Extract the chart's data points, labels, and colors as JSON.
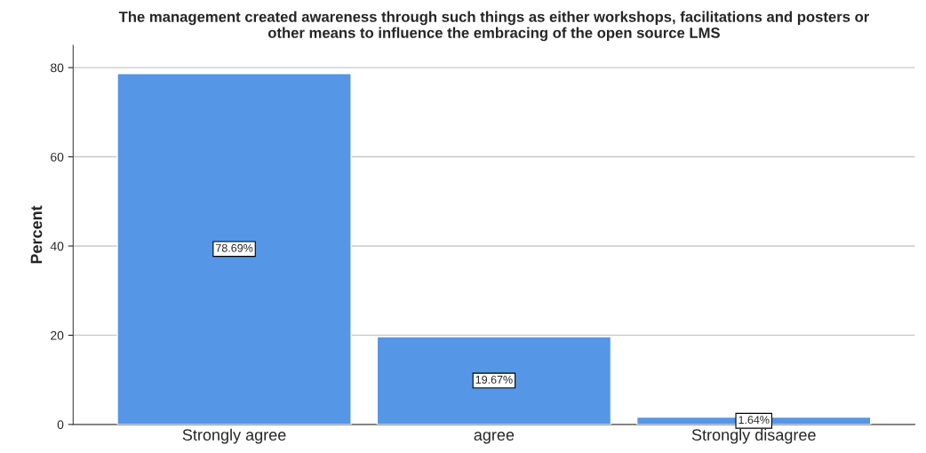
{
  "chart_data": {
    "type": "bar",
    "title": "The management created awareness through such things as either workshops, facilitations and posters or\nother means to influence the embracing of the open source LMS",
    "ylabel": "Percent",
    "categories": [
      "Strongly agree",
      "agree",
      "Strongly disagree"
    ],
    "values": [
      78.69,
      19.67,
      1.64
    ],
    "value_labels": [
      "78.69%",
      "19.67%",
      "1.64%"
    ],
    "color": "#5596e6",
    "ylim": [
      0,
      85
    ],
    "yticks": [
      0,
      20,
      40,
      60,
      80
    ],
    "grid": "y"
  }
}
